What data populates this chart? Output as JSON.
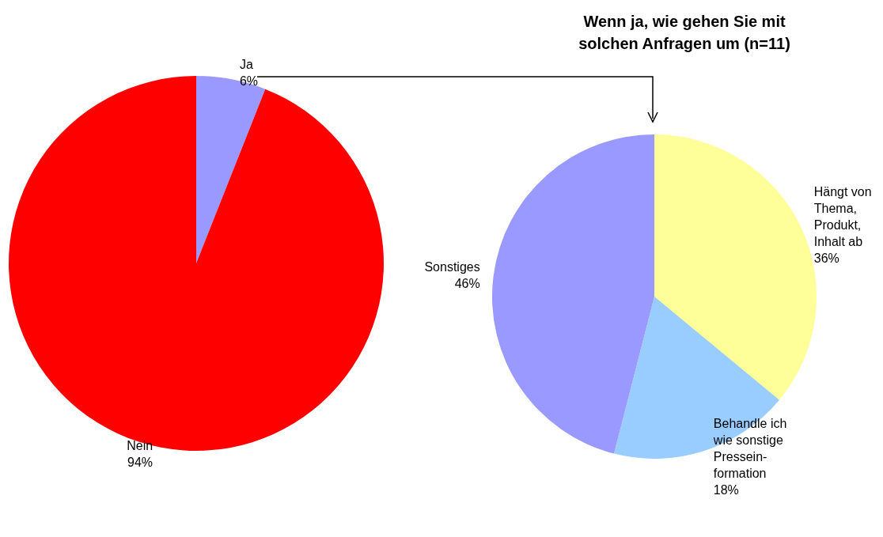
{
  "chart_data": [
    {
      "type": "pie",
      "categories": [
        "Ja",
        "Nein"
      ],
      "values": [
        6,
        94
      ],
      "value_labels": [
        "6%",
        "94%"
      ],
      "colors": [
        "#9999ff",
        "#ff0000"
      ],
      "legend": false
    },
    {
      "type": "pie",
      "title": "Wenn ja, wie gehen Sie mit\nsolchen Anfragen um (n=11)",
      "categories": [
        "Hängt von\nThema,\nProdukt,\nInhalt ab",
        "Behandle ich\nwie sonstige\nPressein-\nformation",
        "Sonstiges"
      ],
      "values": [
        36,
        18,
        46
      ],
      "value_labels": [
        "36%",
        "18%",
        "46%"
      ],
      "colors": [
        "#ffff99",
        "#99ccff",
        "#9999ff"
      ],
      "legend": false
    }
  ]
}
